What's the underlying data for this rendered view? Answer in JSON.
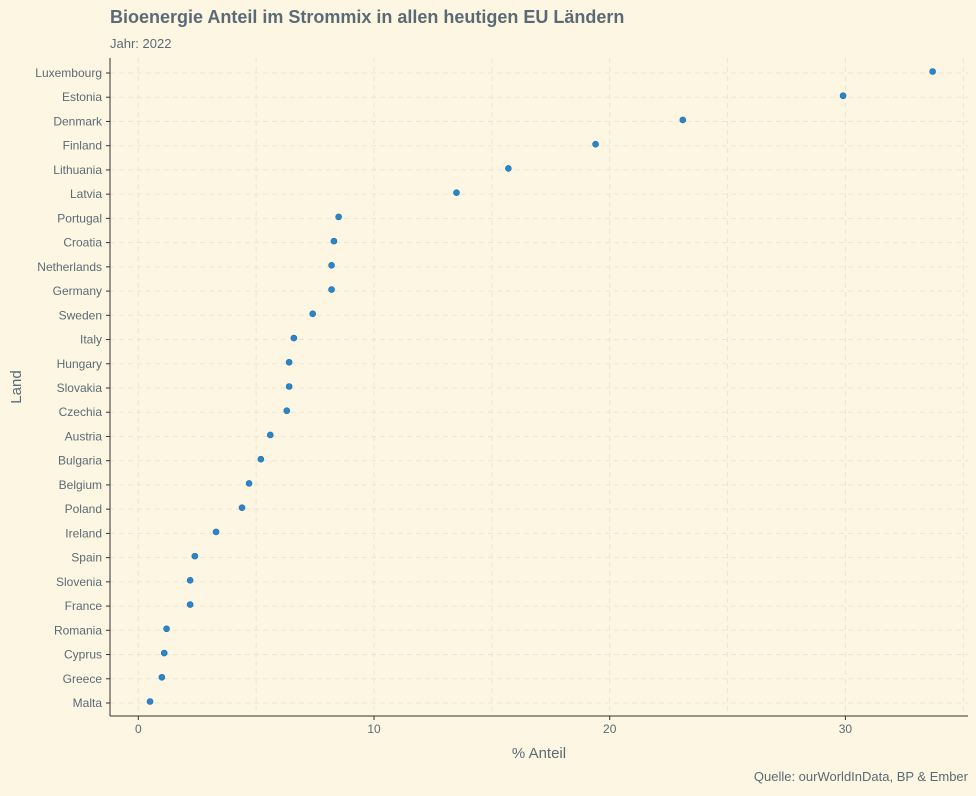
{
  "chart_data": {
    "type": "scatter",
    "title": "Bioenergie Anteil im Strommix in allen heutigen EU Ländern",
    "subtitle": "Jahr: 2022",
    "xlabel": "% Anteil",
    "ylabel": "Land",
    "caption": "Quelle: ourWorldInData, BP & Ember",
    "xlim": [
      -1.2,
      35.2
    ],
    "xticks": [
      0,
      10,
      20,
      30
    ],
    "grid": true,
    "point_color": "#2a86c9",
    "background": "#fdf6e3",
    "countries": [
      "Luxembourg",
      "Estonia",
      "Denmark",
      "Finland",
      "Lithuania",
      "Latvia",
      "Portugal",
      "Croatia",
      "Netherlands",
      "Germany",
      "Sweden",
      "Italy",
      "Hungary",
      "Slovakia",
      "Czechia",
      "Austria",
      "Bulgaria",
      "Belgium",
      "Poland",
      "Ireland",
      "Spain",
      "Slovenia",
      "France",
      "Romania",
      "Cyprus",
      "Greece",
      "Malta"
    ],
    "values": [
      33.7,
      29.9,
      23.1,
      19.4,
      15.7,
      13.5,
      8.5,
      8.3,
      8.2,
      8.2,
      7.4,
      6.6,
      6.4,
      6.4,
      6.3,
      5.6,
      5.2,
      4.7,
      4.4,
      3.3,
      2.4,
      2.2,
      2.2,
      1.2,
      1.1,
      1.0,
      0.5
    ]
  }
}
